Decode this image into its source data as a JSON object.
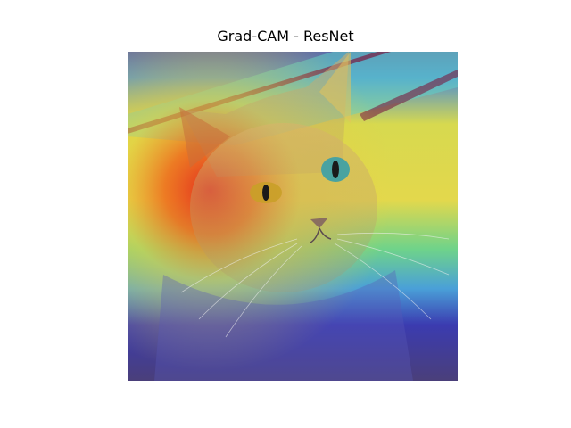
{
  "figure": {
    "title": "Grad-CAM - ResNet"
  },
  "image": {
    "subject": "cat-photo-with-gradcam-heatmap-overlay",
    "colormap": "jet",
    "colors": {
      "cold": "#2a2aa6",
      "cool": "#3b8fd6",
      "mid": "#5fdc9a",
      "warm": "#f0e050",
      "hot": "#e83a1e"
    }
  }
}
